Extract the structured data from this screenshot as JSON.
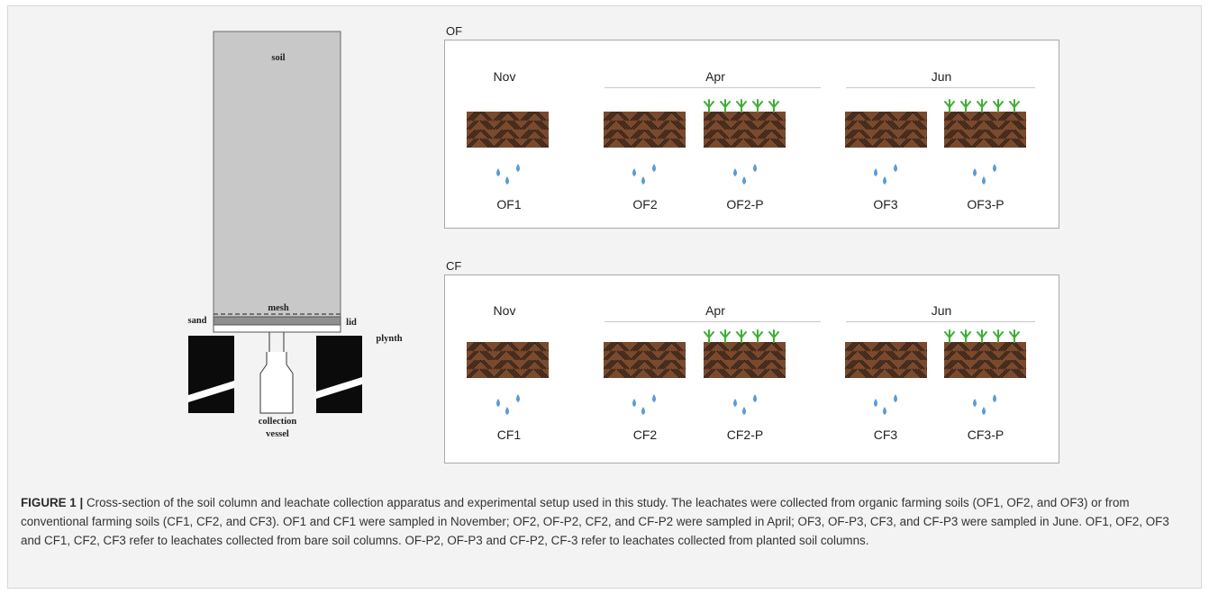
{
  "apparatus": {
    "soil_label": "soil",
    "mesh_label": "mesh",
    "sand_label": "sand",
    "lid_label": "lid",
    "plynth_label": "plynth",
    "collection_label_line1": "collection",
    "collection_label_line2": "vessel"
  },
  "panels": [
    {
      "title": "OF",
      "months": [
        "Nov",
        "Apr",
        "Jun"
      ],
      "samples": [
        "OF1",
        "OF2",
        "OF2-P",
        "OF3",
        "OF3-P"
      ]
    },
    {
      "title": "CF",
      "months": [
        "Nov",
        "Apr",
        "Jun"
      ],
      "samples": [
        "CF1",
        "CF2",
        "CF2-P",
        "CF3",
        "CF3-P"
      ]
    }
  ],
  "colors": {
    "soil": "#7a4a2e",
    "soil_hatch": "#3a2418",
    "water": "#5b9bd5",
    "plant": "#3fae34",
    "column": "#c8c8c8"
  },
  "caption": {
    "label": "FIGURE 1 |",
    "text": " Cross-section of the soil column and leachate collection apparatus and experimental setup used in this study. The leachates were collected from organic farming soils (OF1, OF2, and OF3) or from conventional farming soils (CF1, CF2, and CF3). OF1 and CF1 were sampled in November; OF2, OF-P2, CF2, and CF-P2 were sampled in April; OF3, OF-P3, CF3, and CF-P3 were sampled in June. OF1, OF2, OF3 and CF1, CF2, CF3 refer to leachates collected from bare soil columns. OF-P2, OF-P3 and CF-P2, CF-3 refer to leachates collected from planted soil columns."
  }
}
